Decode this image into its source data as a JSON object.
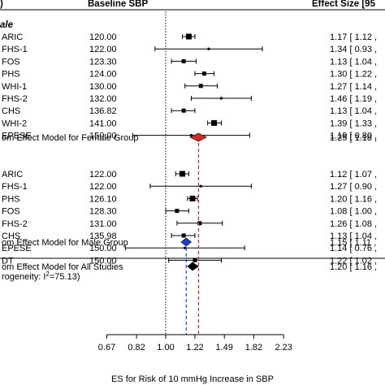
{
  "header": {
    "col_baseline": "Baseline SBP",
    "col_effect": "Effect Size [95",
    "group_female_label": "ale"
  },
  "chart_data": {
    "type": "forest",
    "xlabel": "ES for Risk of 10 mmHg Increase in SBP",
    "x_ticks": [
      "0.67",
      "0.82",
      "1.00",
      "1.22",
      "1.49",
      "1.82",
      "2.23"
    ],
    "x_scale": "log",
    "x_range": [
      0.67,
      2.23
    ],
    "reference_line": 1.0,
    "female": {
      "studies": [
        {
          "name": "ARIC",
          "sbp": "120.00",
          "es": 1.17,
          "lo": 1.12,
          "hi": 1.22,
          "ci_text": "1.17 [ 1.12 , "
        },
        {
          "name": "FHS-1",
          "sbp": "122.00",
          "es": 1.34,
          "lo": 0.93,
          "hi": 1.93,
          "ci_text": "1.34 [ 0.93 , "
        },
        {
          "name": "FOS",
          "sbp": "123.30",
          "es": 1.13,
          "lo": 1.04,
          "hi": 1.23,
          "ci_text": "1.13 [ 1.04 , "
        },
        {
          "name": "PHS",
          "sbp": "124.00",
          "es": 1.3,
          "lo": 1.22,
          "hi": 1.39,
          "ci_text": "1.30 [ 1.22 , "
        },
        {
          "name": "WHI-1",
          "sbp": "130.00",
          "es": 1.27,
          "lo": 1.14,
          "hi": 1.42,
          "ci_text": "1.27 [ 1.14 , "
        },
        {
          "name": "FHS-2",
          "sbp": "132.00",
          "es": 1.46,
          "lo": 1.19,
          "hi": 1.79,
          "ci_text": "1.46 [ 1.19 , "
        },
        {
          "name": "CHS",
          "sbp": "136.82",
          "es": 1.13,
          "lo": 1.04,
          "hi": 1.22,
          "ci_text": "1.13 [ 1.04 , "
        },
        {
          "name": "WHI-2",
          "sbp": "141.00",
          "es": 1.39,
          "lo": 1.33,
          "hi": 1.46,
          "ci_text": "1.39 [ 1.33 , "
        },
        {
          "name": "EPESE",
          "sbp": "150.00",
          "es": 1.19,
          "lo": 0.8,
          "hi": 1.77,
          "ci_text": "1.19 [ 0.80 , "
        }
      ],
      "summary": {
        "label": "om Effect Model for Female Group",
        "es": 1.25,
        "lo": 1.18,
        "hi": 1.32,
        "ci_text": "1.25 [ 1.18 , "
      }
    },
    "male": {
      "studies": [
        {
          "name": "ARIC",
          "sbp": "122.00",
          "es": 1.12,
          "lo": 1.07,
          "hi": 1.17,
          "ci_text": "1.12 [ 1.07 , "
        },
        {
          "name": "FHS-1",
          "sbp": "122.00",
          "es": 1.27,
          "lo": 0.9,
          "hi": 1.79,
          "ci_text": "1.27 [ 0.90 , "
        },
        {
          "name": "PHS",
          "sbp": "126.10",
          "es": 1.2,
          "lo": 1.16,
          "hi": 1.24,
          "ci_text": "1.20 [ 1.16 , "
        },
        {
          "name": "FOS",
          "sbp": "128.30",
          "es": 1.08,
          "lo": 1.0,
          "hi": 1.17,
          "ci_text": "1.08 [ 1.00 , "
        },
        {
          "name": "FHS-2",
          "sbp": "131.00",
          "es": 1.26,
          "lo": 1.08,
          "hi": 1.47,
          "ci_text": "1.26 [ 1.08 , "
        },
        {
          "name": "CHS",
          "sbp": "135.98",
          "es": 1.13,
          "lo": 1.04,
          "hi": 1.22,
          "ci_text": "1.13 [ 1.04 , "
        },
        {
          "name": "EPESE",
          "sbp": "150.00",
          "es": 1.14,
          "lo": 0.76,
          "hi": 1.71,
          "ci_text": "1.14 [ 0.76 , "
        },
        {
          "name": "DT",
          "sbp": "150.00",
          "es": 1.22,
          "lo": 1.02,
          "hi": 1.46,
          "ci_text": "1.22 [ 1.02 , "
        }
      ],
      "summary": {
        "label": "om Effect Model for Male Group",
        "es": 1.15,
        "lo": 1.11,
        "hi": 1.19,
        "ci_text": "1.15 [ 1.11 , "
      }
    },
    "overall": {
      "label": "om Effect Model for All Studies",
      "heterogeneity_prefix": "rogeneity: I",
      "heterogeneity_sup": "2",
      "heterogeneity_suffix": "=75.13)",
      "es": 1.2,
      "lo": 1.16,
      "hi": 1.25,
      "ci_text": "1.20 [ 1.16 , "
    },
    "colors": {
      "female_summary": "#d62728",
      "male_summary": "#1f3fcc",
      "overall_summary": "#000000",
      "female_line": "#d62728",
      "male_line": "#1f3fcc",
      "marker": "#000000"
    }
  }
}
